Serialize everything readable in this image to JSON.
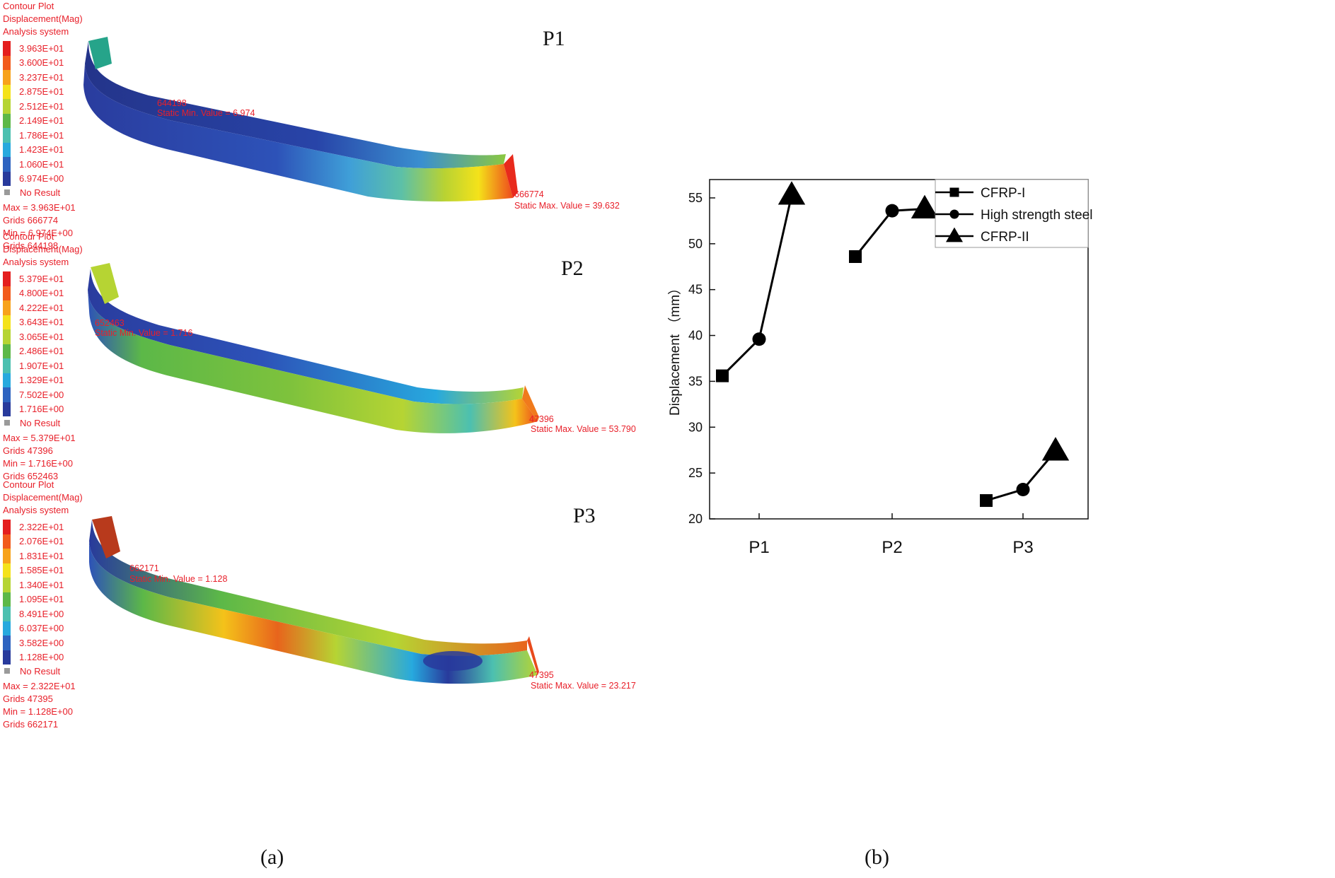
{
  "panels": [
    {
      "id": "P1",
      "header": [
        "Contour Plot",
        "Displacement(Mag)",
        "Analysis system"
      ],
      "levels": [
        "3.963E+01",
        "3.600E+01",
        "3.237E+01",
        "2.875E+01",
        "2.512E+01",
        "2.149E+01",
        "1.786E+01",
        "1.423E+01",
        "1.060E+01",
        "6.974E+00"
      ],
      "no_result": "No Result",
      "stats": [
        "Max = 3.963E+01",
        "Grids 666774",
        "Min = 6.974E+00",
        "Grids 644198"
      ],
      "min_node": "644198",
      "min_text": "Static Min. Value = 6.974",
      "max_node": "666774",
      "max_text": "Static Max. Value = 39.632"
    },
    {
      "id": "P2",
      "header": [
        "Contour Plot",
        "Displacement(Mag)",
        "Analysis system"
      ],
      "levels": [
        "5.379E+01",
        "4.800E+01",
        "4.222E+01",
        "3.643E+01",
        "3.065E+01",
        "2.486E+01",
        "1.907E+01",
        "1.329E+01",
        "7.502E+00",
        "1.716E+00"
      ],
      "no_result": "No Result",
      "stats": [
        "Max = 5.379E+01",
        "Grids 47396",
        "Min = 1.716E+00",
        "Grids 652463"
      ],
      "min_node": "652463",
      "min_text": "Static Min. Value = 1.716",
      "max_node": "47396",
      "max_text": "Static Max. Value = 53.790"
    },
    {
      "id": "P3",
      "header": [
        "Contour Plot",
        "Displacement(Mag)",
        "Analysis system"
      ],
      "levels": [
        "2.322E+01",
        "2.076E+01",
        "1.831E+01",
        "1.585E+01",
        "1.340E+01",
        "1.095E+01",
        "8.491E+00",
        "6.037E+00",
        "3.582E+00",
        "1.128E+00"
      ],
      "no_result": "No Result",
      "stats": [
        "Max = 2.322E+01",
        "Grids 47395",
        "Min = 1.128E+00",
        "Grids 662171"
      ],
      "min_node": "662171",
      "min_text": "Static Min. Value = 1.128",
      "max_node": "47395",
      "max_text": "Static Max. Value = 23.217"
    }
  ],
  "colors": {
    "scale": [
      "#e41e1e",
      "#f25a1c",
      "#f7a21a",
      "#f4e21a",
      "#b6d433",
      "#5cb848",
      "#4cc0b0",
      "#27a9de",
      "#2d63c0",
      "#283a9c"
    ],
    "annotation": "#e8202a"
  },
  "subfigure_labels": {
    "a": "(a)",
    "b": "(b)"
  },
  "chart_data": {
    "type": "line",
    "categories": [
      "P1",
      "P2",
      "P3"
    ],
    "series": [
      {
        "name": "CFRP-I",
        "marker": "square",
        "values": [
          35.6,
          48.6,
          22.0
        ]
      },
      {
        "name": "High strength steel",
        "marker": "circle",
        "values": [
          39.6,
          53.6,
          23.2
        ]
      },
      {
        "name": "CFRP-II",
        "marker": "triangle",
        "values": [
          55.3,
          53.8,
          27.4
        ]
      }
    ],
    "title": "",
    "xlabel": "",
    "ylabel": "Displacement （mm）",
    "ylim": [
      20,
      57
    ],
    "yticks": [
      20,
      25,
      30,
      35,
      40,
      45,
      50,
      55
    ],
    "legend_position": "top-right"
  }
}
